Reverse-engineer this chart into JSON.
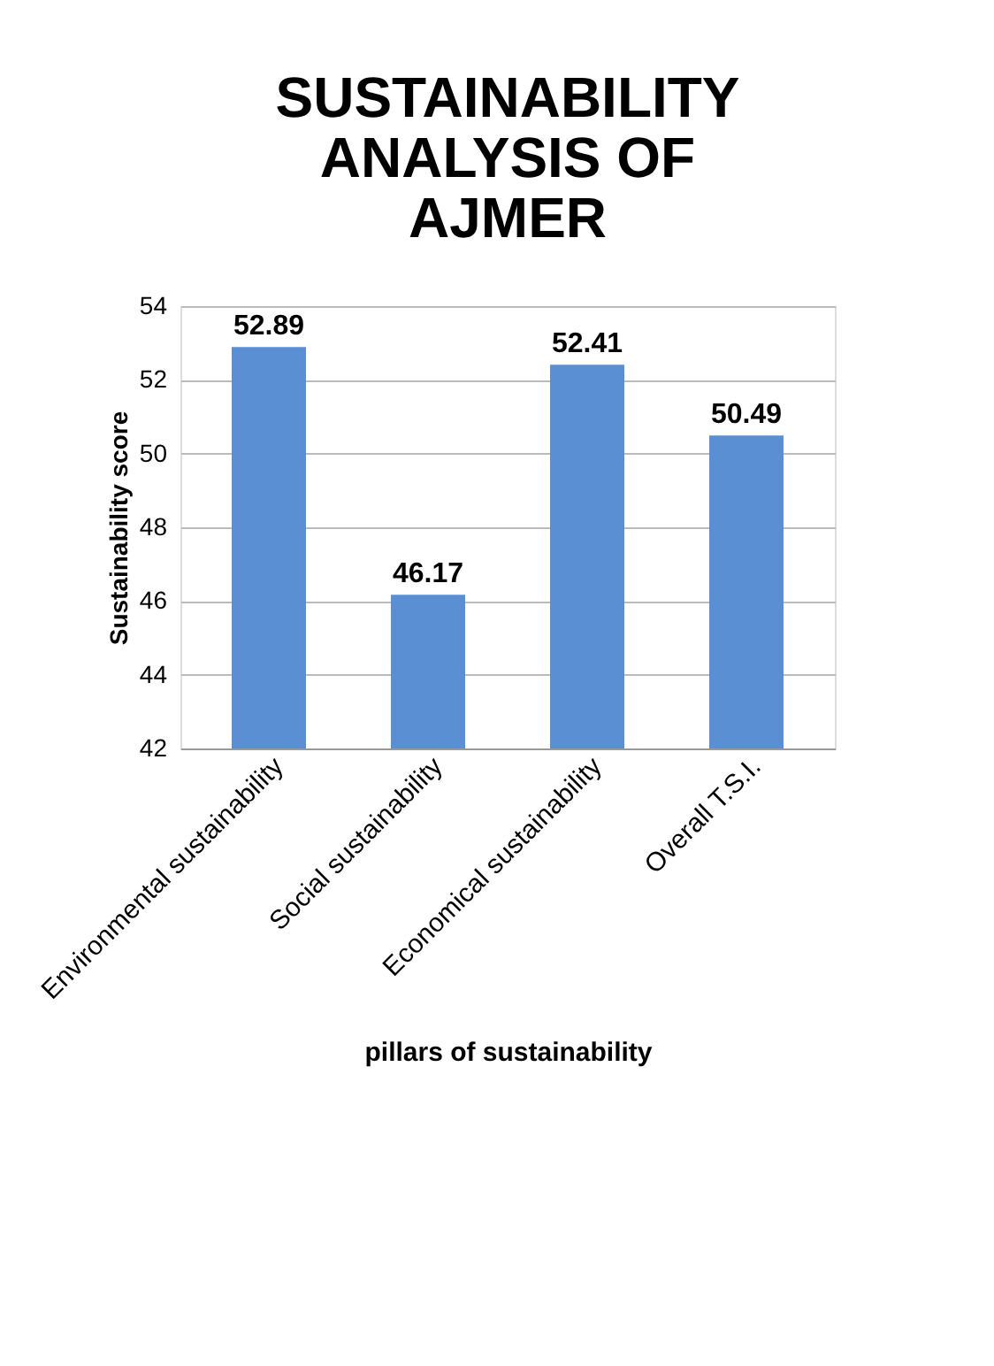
{
  "chart_data": {
    "type": "bar",
    "title": "SUSTAINABILITY ANALYSIS OF AJMER",
    "xlabel": "pillars of sustainability",
    "ylabel": "Sustainability score",
    "categories": [
      "Environmental sustainability",
      "Social sustainability",
      "Economical sustainability",
      "Overall T.S.I."
    ],
    "values": [
      52.89,
      46.17,
      52.41,
      50.49
    ],
    "color": "#5b8fd3",
    "ylim": [
      42,
      54
    ],
    "yticks": [
      42,
      44,
      46,
      48,
      50,
      52,
      54
    ],
    "grid": "y",
    "data_labels": true
  }
}
